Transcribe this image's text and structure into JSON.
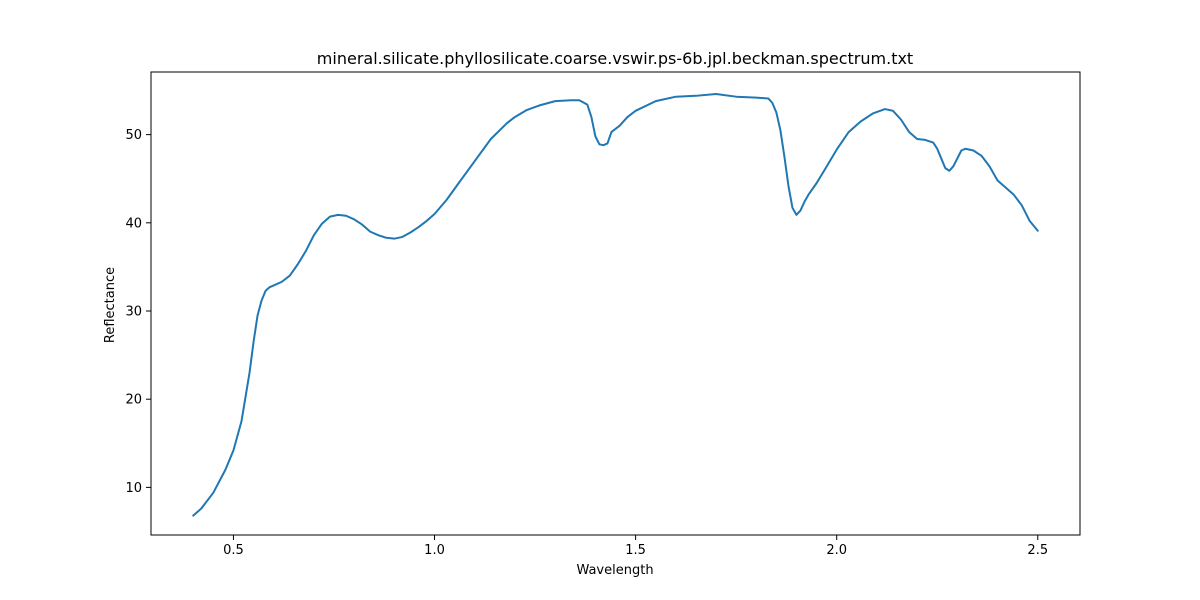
{
  "chart_data": {
    "type": "line",
    "title": "mineral.silicate.phyllosilicate.coarse.vswir.ps-6b.jpl.beckman.spectrum.txt",
    "xlabel": "Wavelength",
    "ylabel": "Reflectance",
    "xlim": [
      0.295,
      2.605
    ],
    "ylim": [
      4.6,
      57.1
    ],
    "xticks": [
      0.5,
      1.0,
      1.5,
      2.0,
      2.5
    ],
    "xtick_labels": [
      "0.5",
      "1.0",
      "1.5",
      "2.0",
      "2.5"
    ],
    "yticks": [
      10,
      20,
      30,
      40,
      50
    ],
    "ytick_labels": [
      "10",
      "20",
      "30",
      "40",
      "50"
    ],
    "grid": false,
    "series": [
      {
        "color": "#1f77b4",
        "x": [
          0.4,
          0.42,
          0.45,
          0.48,
          0.5,
          0.52,
          0.54,
          0.55,
          0.56,
          0.57,
          0.58,
          0.59,
          0.6,
          0.62,
          0.64,
          0.66,
          0.68,
          0.7,
          0.72,
          0.74,
          0.76,
          0.78,
          0.8,
          0.82,
          0.84,
          0.86,
          0.88,
          0.9,
          0.92,
          0.94,
          0.96,
          0.98,
          1.0,
          1.03,
          1.06,
          1.1,
          1.14,
          1.18,
          1.2,
          1.23,
          1.26,
          1.3,
          1.34,
          1.36,
          1.38,
          1.39,
          1.4,
          1.41,
          1.42,
          1.43,
          1.44,
          1.46,
          1.48,
          1.5,
          1.55,
          1.6,
          1.65,
          1.7,
          1.75,
          1.8,
          1.83,
          1.84,
          1.85,
          1.86,
          1.87,
          1.88,
          1.89,
          1.9,
          1.91,
          1.92,
          1.93,
          1.95,
          1.97,
          2.0,
          2.03,
          2.06,
          2.09,
          2.12,
          2.14,
          2.16,
          2.18,
          2.2,
          2.22,
          2.24,
          2.25,
          2.26,
          2.27,
          2.28,
          2.29,
          2.3,
          2.31,
          2.32,
          2.34,
          2.36,
          2.38,
          2.4,
          2.42,
          2.44,
          2.46,
          2.48,
          2.5
        ],
        "y": [
          6.8,
          7.6,
          9.4,
          12.0,
          14.2,
          17.5,
          23.0,
          26.5,
          29.5,
          31.2,
          32.3,
          32.7,
          32.9,
          33.3,
          34.0,
          35.3,
          36.8,
          38.6,
          39.9,
          40.7,
          40.9,
          40.8,
          40.4,
          39.8,
          39.0,
          38.6,
          38.3,
          38.2,
          38.4,
          38.9,
          39.5,
          40.2,
          41.0,
          42.6,
          44.5,
          47.0,
          49.5,
          51.3,
          52.0,
          52.8,
          53.3,
          53.8,
          53.9,
          53.9,
          53.4,
          52.0,
          49.8,
          48.9,
          48.8,
          49.0,
          50.3,
          51.0,
          52.0,
          52.7,
          53.8,
          54.3,
          54.4,
          54.6,
          54.3,
          54.2,
          54.1,
          53.6,
          52.5,
          50.5,
          47.5,
          44.2,
          41.7,
          40.9,
          41.4,
          42.4,
          43.2,
          44.5,
          46.0,
          48.3,
          50.3,
          51.5,
          52.4,
          52.9,
          52.7,
          51.7,
          50.3,
          49.5,
          49.4,
          49.1,
          48.4,
          47.3,
          46.2,
          45.9,
          46.4,
          47.3,
          48.2,
          48.4,
          48.2,
          47.6,
          46.4,
          44.8,
          44.0,
          43.2,
          42.0,
          40.2,
          39.1
        ]
      }
    ]
  }
}
